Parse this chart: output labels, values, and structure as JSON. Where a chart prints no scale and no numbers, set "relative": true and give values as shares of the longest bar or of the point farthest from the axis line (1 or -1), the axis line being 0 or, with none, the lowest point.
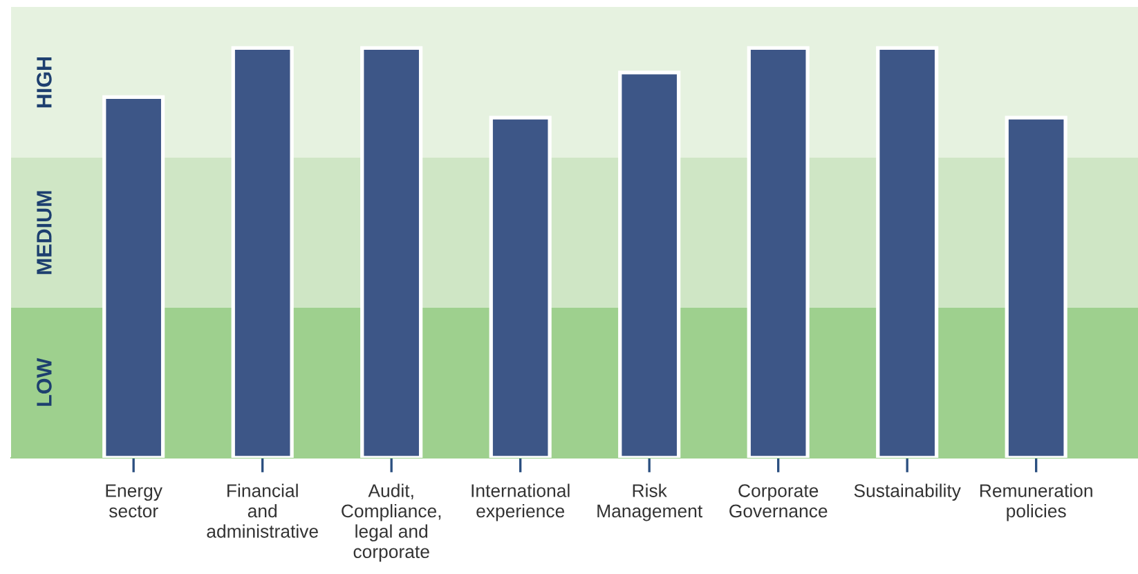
{
  "chart_data": {
    "type": "bar",
    "categories": [
      "Energy\nsector",
      "Financial\nand\nadministrative",
      "Audit,\nCompliance,\nlegal and\ncorporate",
      "International\nexperience",
      "Risk\nManagement",
      "Corporate\nGovernance",
      "Sustainability",
      "Remuneration\npolicies"
    ],
    "values": [
      0.88,
      1,
      1,
      0.83,
      0.94,
      1,
      1,
      0.83
    ],
    "color": "#3d5687",
    "relative": true,
    "bands": [
      {
        "axis": "y",
        "from": 0,
        "to": 0.367,
        "label": "LOW",
        "color": "#9ed08e"
      },
      {
        "axis": "y",
        "from": 0.367,
        "to": 0.732,
        "label": "MEDIUM",
        "color": "#cfe6c5"
      },
      {
        "axis": "y",
        "from": 0.732,
        "to": 1.1,
        "label": "HIGH",
        "color": "#e6f2e0"
      }
    ]
  }
}
